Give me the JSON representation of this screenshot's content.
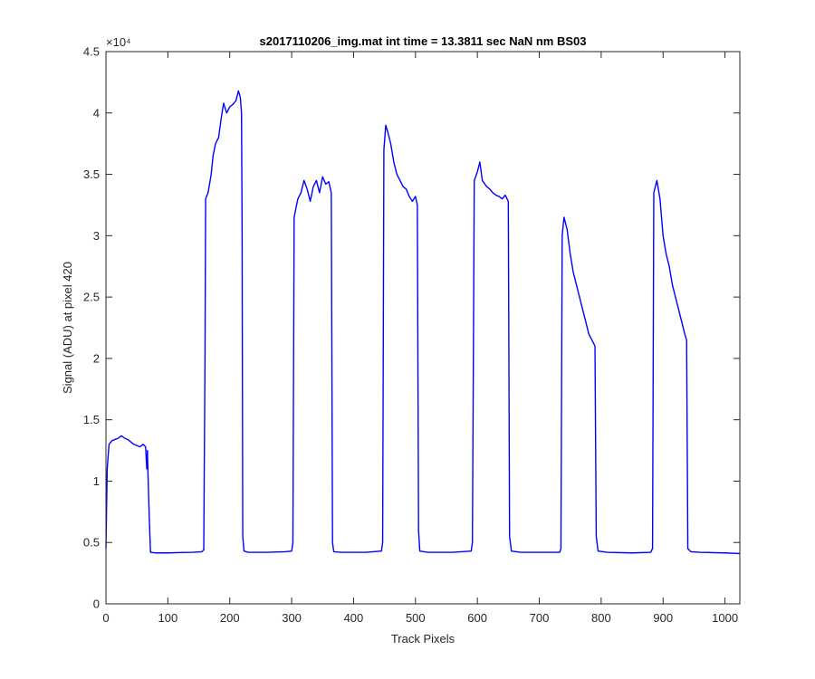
{
  "chart_data": {
    "type": "line",
    "title": "s2017110206_img.mat int time = 13.3811 sec  NaN nm BS03",
    "xlabel": "Track Pixels",
    "ylabel": "Signal (ADU) at pixel 420",
    "xlim": [
      0,
      1024
    ],
    "ylim": [
      0,
      45000
    ],
    "y_exponent_label": "×10⁴",
    "x_ticks": [
      0,
      100,
      200,
      300,
      400,
      500,
      600,
      700,
      800,
      900,
      1000
    ],
    "x_tick_labels": [
      "0",
      "100",
      "200",
      "300",
      "400",
      "500",
      "600",
      "700",
      "800",
      "900",
      "1000"
    ],
    "y_ticks": [
      0,
      5000,
      10000,
      15000,
      20000,
      25000,
      30000,
      35000,
      40000,
      45000
    ],
    "y_tick_labels": [
      "0",
      "0.5",
      "1",
      "1.5",
      "2",
      "2.5",
      "3",
      "3.5",
      "4",
      "4.5"
    ],
    "grid": false,
    "series": [
      {
        "color": "#0000ff",
        "points": [
          [
            0,
            4500
          ],
          [
            2,
            11000
          ],
          [
            5,
            13000
          ],
          [
            10,
            13300
          ],
          [
            20,
            13500
          ],
          [
            25,
            13700
          ],
          [
            30,
            13500
          ],
          [
            35,
            13400
          ],
          [
            40,
            13200
          ],
          [
            45,
            13000
          ],
          [
            50,
            12900
          ],
          [
            55,
            12800
          ],
          [
            60,
            13000
          ],
          [
            64,
            12800
          ],
          [
            66,
            11000
          ],
          [
            67,
            12500
          ],
          [
            68,
            10500
          ],
          [
            70,
            7000
          ],
          [
            72,
            4200
          ],
          [
            80,
            4150
          ],
          [
            100,
            4150
          ],
          [
            120,
            4180
          ],
          [
            140,
            4200
          ],
          [
            155,
            4250
          ],
          [
            158,
            4400
          ],
          [
            160,
            20000
          ],
          [
            161,
            33000
          ],
          [
            165,
            33500
          ],
          [
            170,
            35000
          ],
          [
            173,
            36500
          ],
          [
            177,
            37500
          ],
          [
            182,
            38000
          ],
          [
            186,
            39500
          ],
          [
            190,
            40800
          ],
          [
            195,
            40000
          ],
          [
            200,
            40500
          ],
          [
            205,
            40700
          ],
          [
            210,
            41000
          ],
          [
            214,
            41800
          ],
          [
            217,
            41300
          ],
          [
            219,
            40000
          ],
          [
            220,
            30000
          ],
          [
            221,
            5500
          ],
          [
            223,
            4300
          ],
          [
            230,
            4200
          ],
          [
            260,
            4200
          ],
          [
            290,
            4250
          ],
          [
            300,
            4300
          ],
          [
            302,
            5000
          ],
          [
            304,
            31500
          ],
          [
            310,
            33000
          ],
          [
            315,
            33500
          ],
          [
            320,
            34500
          ],
          [
            325,
            33800
          ],
          [
            330,
            32800
          ],
          [
            335,
            34000
          ],
          [
            340,
            34500
          ],
          [
            345,
            33500
          ],
          [
            350,
            34800
          ],
          [
            355,
            34200
          ],
          [
            360,
            34400
          ],
          [
            364,
            33500
          ],
          [
            366,
            5000
          ],
          [
            368,
            4250
          ],
          [
            380,
            4200
          ],
          [
            420,
            4200
          ],
          [
            445,
            4300
          ],
          [
            447,
            5000
          ],
          [
            449,
            37000
          ],
          [
            452,
            39000
          ],
          [
            455,
            38500
          ],
          [
            460,
            37500
          ],
          [
            465,
            36000
          ],
          [
            470,
            35000
          ],
          [
            475,
            34500
          ],
          [
            480,
            34000
          ],
          [
            485,
            33800
          ],
          [
            490,
            33200
          ],
          [
            495,
            32800
          ],
          [
            500,
            33200
          ],
          [
            503,
            32500
          ],
          [
            505,
            6000
          ],
          [
            507,
            4300
          ],
          [
            520,
            4200
          ],
          [
            560,
            4200
          ],
          [
            590,
            4300
          ],
          [
            592,
            5000
          ],
          [
            595,
            34500
          ],
          [
            600,
            35200
          ],
          [
            604,
            36000
          ],
          [
            608,
            34500
          ],
          [
            615,
            34000
          ],
          [
            620,
            33800
          ],
          [
            625,
            33500
          ],
          [
            630,
            33300
          ],
          [
            635,
            33200
          ],
          [
            640,
            33000
          ],
          [
            645,
            33300
          ],
          [
            650,
            32800
          ],
          [
            652,
            5500
          ],
          [
            655,
            4300
          ],
          [
            670,
            4200
          ],
          [
            710,
            4200
          ],
          [
            733,
            4200
          ],
          [
            735,
            4500
          ],
          [
            737,
            30000
          ],
          [
            740,
            31500
          ],
          [
            745,
            30500
          ],
          [
            750,
            28500
          ],
          [
            755,
            27000
          ],
          [
            760,
            26000
          ],
          [
            765,
            25000
          ],
          [
            770,
            24000
          ],
          [
            775,
            23000
          ],
          [
            780,
            22000
          ],
          [
            785,
            21500
          ],
          [
            790,
            21000
          ],
          [
            792,
            5500
          ],
          [
            795,
            4300
          ],
          [
            810,
            4200
          ],
          [
            850,
            4150
          ],
          [
            880,
            4200
          ],
          [
            883,
            4500
          ],
          [
            885,
            33500
          ],
          [
            890,
            34500
          ],
          [
            895,
            33000
          ],
          [
            900,
            30000
          ],
          [
            905,
            28500
          ],
          [
            910,
            27500
          ],
          [
            915,
            26000
          ],
          [
            920,
            25000
          ],
          [
            925,
            24000
          ],
          [
            930,
            23000
          ],
          [
            935,
            22000
          ],
          [
            938,
            21500
          ],
          [
            940,
            4500
          ],
          [
            945,
            4250
          ],
          [
            960,
            4200
          ],
          [
            1000,
            4150
          ],
          [
            1024,
            4100
          ]
        ]
      }
    ]
  }
}
